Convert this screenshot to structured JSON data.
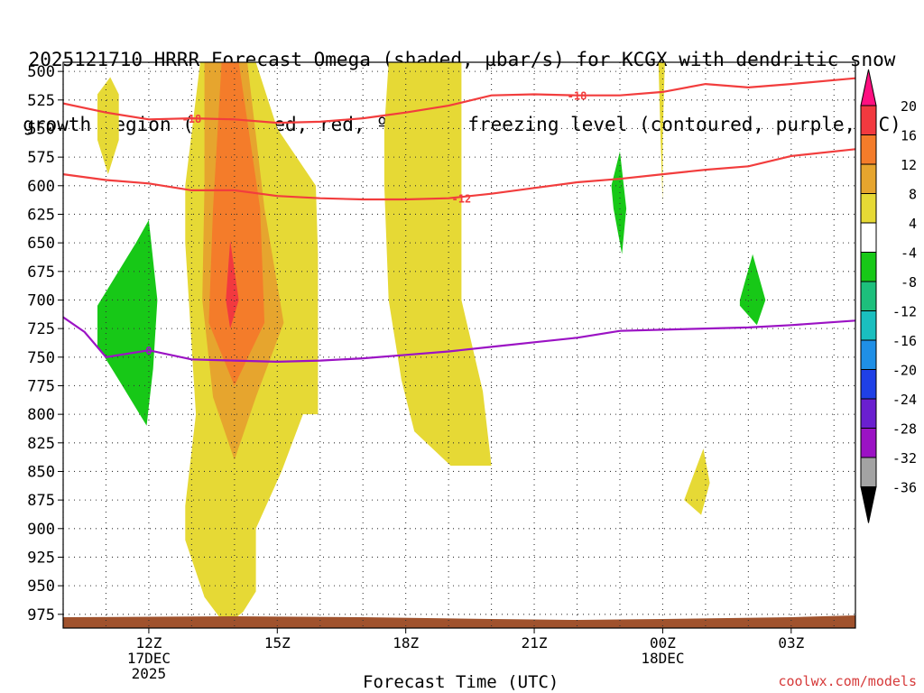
{
  "title_lines": [
    "2025121710 HRRR Forecast Omega (shaded, µbar/s) for KCGX with dendritic snow",
    "growth region (contoured, red, ºC) and freezing level (contoured, purple, ºC)"
  ],
  "credit": "coolwx.com/models",
  "chart_data": {
    "type": "contour",
    "xlabel": "Forecast Time (UTC)",
    "x_range_hours": [
      10,
      28.5
    ],
    "ylim_hpa": [
      987,
      492
    ],
    "x_ticks": [
      {
        "hour": 12,
        "label": "12Z",
        "sub": [
          "17DEC",
          "2025"
        ]
      },
      {
        "hour": 15,
        "label": "15Z",
        "sub": []
      },
      {
        "hour": 18,
        "label": "18Z",
        "sub": []
      },
      {
        "hour": 21,
        "label": "21Z",
        "sub": []
      },
      {
        "hour": 24,
        "label": "00Z",
        "sub": [
          "18DEC"
        ]
      },
      {
        "hour": 27,
        "label": "03Z",
        "sub": []
      }
    ],
    "y_ticks": [
      500,
      525,
      550,
      575,
      600,
      625,
      650,
      675,
      700,
      725,
      750,
      775,
      800,
      825,
      850,
      875,
      900,
      925,
      950,
      975
    ],
    "colorbar": {
      "labels": [
        "20",
        "16",
        "12",
        "8",
        "4",
        "-4",
        "-8",
        "-12",
        "-16",
        "-20",
        "-24",
        "-28",
        "-32",
        "-36"
      ],
      "colors": [
        "#ff0f80",
        "#f2393f",
        "#f47c2a",
        "#e6a52e",
        "#e6d935",
        "#ffffff",
        "#17c817",
        "#1dbf7c",
        "#1abfbf",
        "#1f8fe6",
        "#1f40e6",
        "#6a1fcf",
        "#9b12c4",
        "#a3a3a3",
        "#000000"
      ]
    },
    "shading": [
      {
        "name": "yellow-4-8",
        "color": "#e6d935",
        "polygons": [
          [
            [
              10.8,
              520
            ],
            [
              11.1,
              505
            ],
            [
              11.3,
              520
            ],
            [
              11.3,
              560
            ],
            [
              11.05,
              590
            ],
            [
              10.8,
              560
            ]
          ],
          [
            [
              13.2,
              492
            ],
            [
              14.5,
              492
            ],
            [
              15.0,
              550
            ],
            [
              15.9,
              600
            ],
            [
              15.95,
              660
            ],
            [
              15.95,
              800
            ],
            [
              15.6,
              800
            ],
            [
              15.1,
              850
            ],
            [
              14.5,
              900
            ],
            [
              14.5,
              955
            ],
            [
              14.2,
              973
            ],
            [
              13.8,
              985
            ],
            [
              13.3,
              960
            ],
            [
              12.85,
              910
            ],
            [
              12.85,
              880
            ],
            [
              13.1,
              800
            ],
            [
              12.85,
              650
            ],
            [
              12.85,
              600
            ]
          ],
          [
            [
              17.6,
              492
            ],
            [
              19.3,
              492
            ],
            [
              19.3,
              600
            ],
            [
              19.3,
              700
            ],
            [
              19.8,
              780
            ],
            [
              20.0,
              845
            ],
            [
              19.05,
              845
            ],
            [
              18.2,
              815
            ],
            [
              17.9,
              770
            ],
            [
              17.6,
              700
            ],
            [
              17.5,
              600
            ],
            [
              17.5,
              550
            ]
          ],
          [
            [
              23.9,
              492
            ],
            [
              24.05,
              492
            ],
            [
              24.0,
              560
            ],
            [
              24.0,
              615
            ],
            [
              23.95,
              560
            ]
          ],
          [
            [
              24.5,
              875
            ],
            [
              24.95,
              830
            ],
            [
              25.1,
              860
            ],
            [
              24.9,
              888
            ]
          ]
        ]
      },
      {
        "name": "orange-8-12",
        "color": "#e6a52e",
        "polygons": [
          [
            [
              13.3,
              492
            ],
            [
              14.3,
              492
            ],
            [
              14.7,
              620
            ],
            [
              15.15,
              720
            ],
            [
              14.5,
              785
            ],
            [
              14.0,
              840
            ],
            [
              13.5,
              785
            ],
            [
              13.25,
              700
            ],
            [
              13.3,
              600
            ]
          ]
        ]
      },
      {
        "name": "orange-12-16",
        "color": "#f47c2a",
        "polygons": [
          [
            [
              13.7,
              492
            ],
            [
              14.1,
              492
            ],
            [
              14.6,
              620
            ],
            [
              14.7,
              720
            ],
            [
              14.0,
              775
            ],
            [
              13.4,
              720
            ],
            [
              13.5,
              620
            ]
          ]
        ]
      },
      {
        "name": "red-16-20",
        "color": "#f2393f",
        "polygons": [
          [
            [
              13.9,
              648
            ],
            [
              14.1,
              700
            ],
            [
              13.9,
              725
            ],
            [
              13.8,
              700
            ]
          ]
        ]
      },
      {
        "name": "green-neg4-neg8",
        "color": "#17c817",
        "polygons": [
          [
            [
              10.8,
              705
            ],
            [
              11.7,
              650
            ],
            [
              12.0,
              630
            ],
            [
              12.2,
              700
            ],
            [
              12.1,
              760
            ],
            [
              11.95,
              810
            ],
            [
              11.3,
              770
            ],
            [
              10.8,
              740
            ]
          ],
          [
            [
              22.8,
              600
            ],
            [
              23.0,
              570
            ],
            [
              23.15,
              620
            ],
            [
              23.05,
              660
            ],
            [
              22.85,
              620
            ]
          ],
          [
            [
              25.8,
              700
            ],
            [
              26.1,
              660
            ],
            [
              26.4,
              700
            ],
            [
              26.2,
              722
            ],
            [
              25.8,
              705
            ]
          ]
        ]
      }
    ],
    "contours": [
      {
        "name": "dgz-minus-18",
        "label": "-18",
        "color": "#f23d3d",
        "points": [
          [
            10,
            528
          ],
          [
            11,
            536
          ],
          [
            12,
            542
          ],
          [
            13,
            541
          ],
          [
            14,
            542
          ],
          [
            15,
            545
          ],
          [
            16,
            544
          ],
          [
            17,
            541
          ],
          [
            18,
            536
          ],
          [
            19,
            530
          ],
          [
            20,
            521
          ],
          [
            21,
            520
          ],
          [
            22,
            521
          ],
          [
            23,
            521
          ],
          [
            24,
            518
          ],
          [
            25,
            511
          ],
          [
            26,
            514
          ],
          [
            27,
            511
          ],
          [
            28.5,
            506
          ]
        ],
        "label_at": [
          [
            13.0,
            541
          ],
          [
            22.0,
            521
          ]
        ]
      },
      {
        "name": "dgz-minus-12",
        "label": "-12",
        "color": "#f23d3d",
        "points": [
          [
            10,
            590
          ],
          [
            11,
            595
          ],
          [
            12,
            598
          ],
          [
            13,
            604
          ],
          [
            14,
            604
          ],
          [
            15,
            609
          ],
          [
            16,
            611
          ],
          [
            17,
            612
          ],
          [
            18,
            612
          ],
          [
            19,
            611
          ],
          [
            20,
            607
          ],
          [
            21,
            602
          ],
          [
            22,
            597
          ],
          [
            23,
            594
          ],
          [
            24,
            590
          ],
          [
            25,
            586
          ],
          [
            26,
            583
          ],
          [
            27,
            574
          ],
          [
            28.5,
            568
          ]
        ],
        "label_at": [
          [
            19.3,
            611
          ]
        ]
      },
      {
        "name": "freezing-level",
        "label": "0",
        "color": "#9b12c4",
        "points": [
          [
            10,
            715
          ],
          [
            10.5,
            728
          ],
          [
            11,
            750
          ],
          [
            12,
            744
          ],
          [
            13,
            752
          ],
          [
            14,
            753
          ],
          [
            15,
            754
          ],
          [
            16,
            753
          ],
          [
            17,
            751
          ],
          [
            18,
            748
          ],
          [
            19,
            745
          ],
          [
            20,
            741
          ],
          [
            21,
            737
          ],
          [
            22,
            733
          ],
          [
            23,
            727
          ],
          [
            24,
            726
          ],
          [
            25,
            725
          ],
          [
            26,
            724
          ],
          [
            27,
            722
          ],
          [
            28.5,
            718
          ]
        ],
        "label_at": [
          [
            12.0,
            744
          ]
        ]
      }
    ],
    "terrain_color": "#a0522d"
  }
}
